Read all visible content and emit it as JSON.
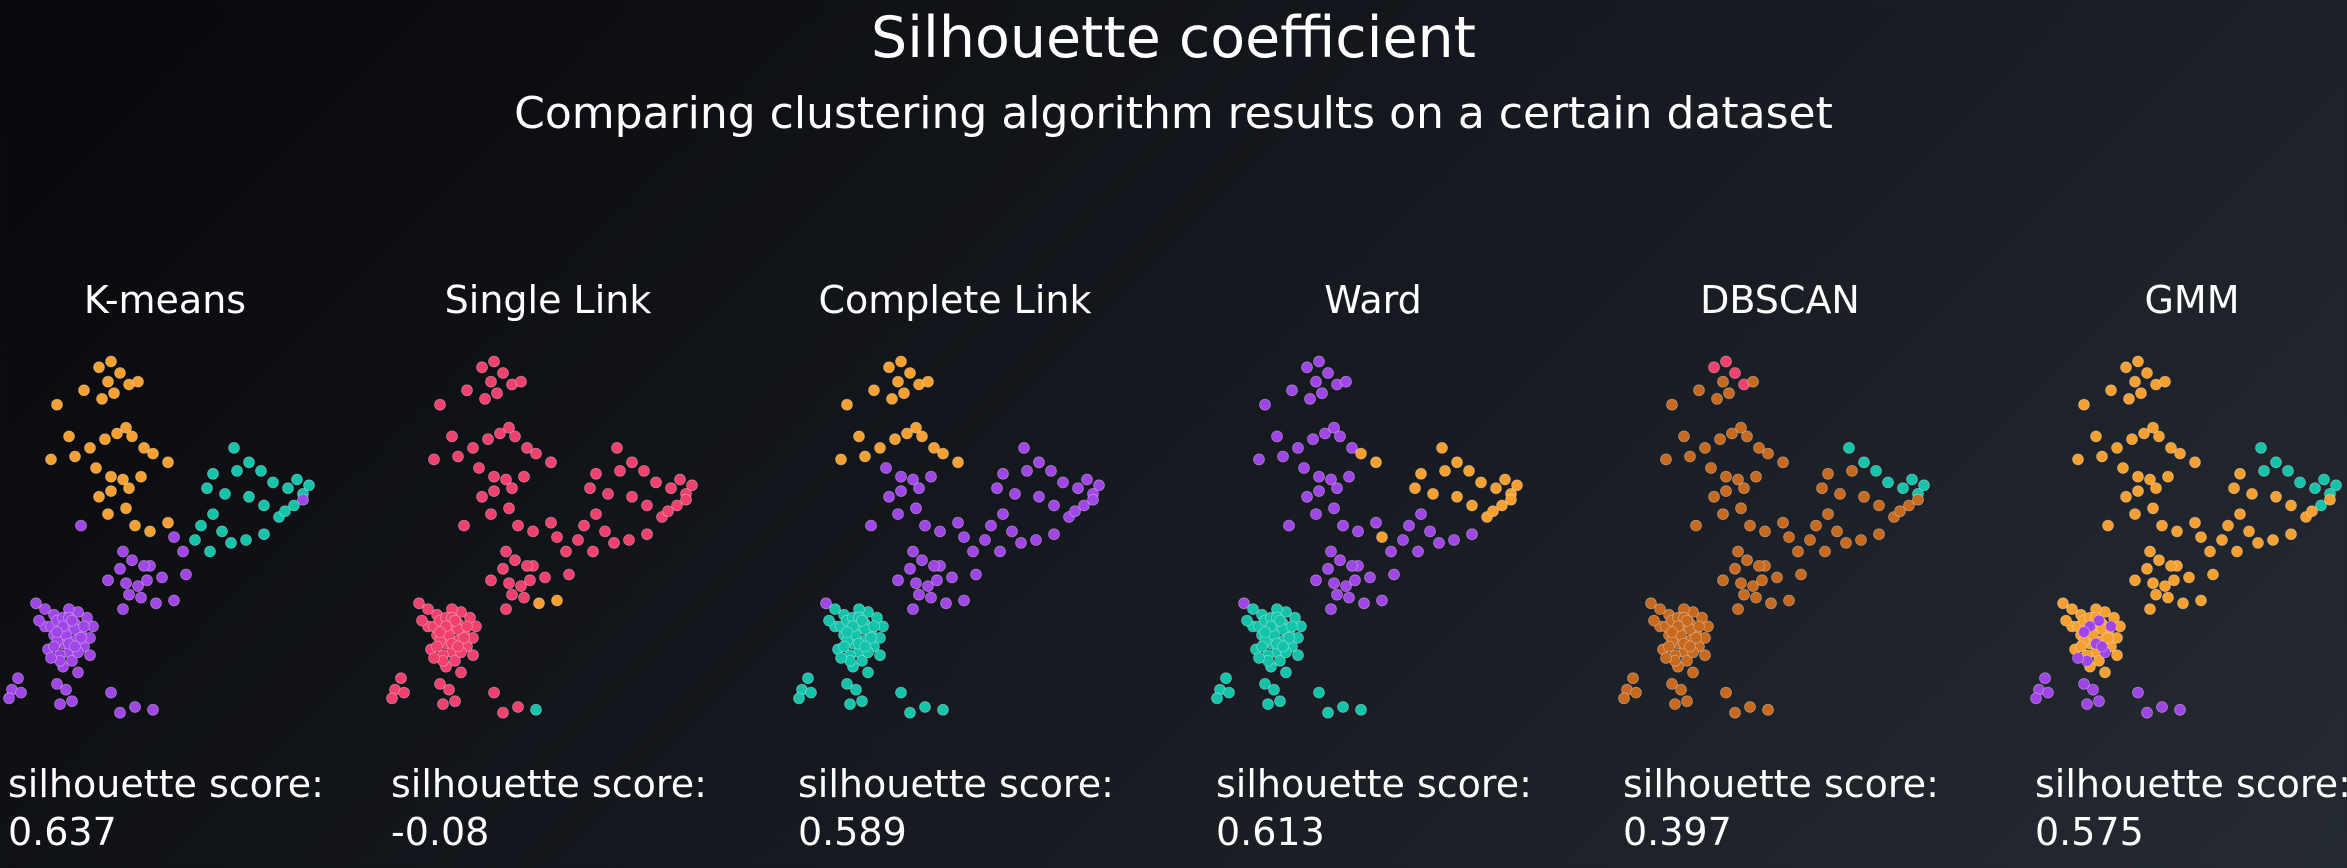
{
  "title": "Silhouette coefficient",
  "subtitle": "Comparing clustering algorithm results on a certain dataset",
  "colors": {
    "purple": "#a046e6",
    "orange": "#f5a030",
    "teal": "#14c4aa",
    "pink": "#f0406e",
    "brown": "#c76a20"
  },
  "chart_data": {
    "type": "scatter",
    "points": [
      [
        -2.2,
        4.0
      ],
      [
        -2.6,
        5.1
      ],
      [
        -1.7,
        5.6
      ],
      [
        -1.1,
        5.3
      ],
      [
        -0.7,
        5.5
      ],
      [
        -0.9,
        5.9
      ],
      [
        -1.2,
        6.4
      ],
      [
        -0.8,
        6.6
      ],
      [
        -0.5,
        6.2
      ],
      [
        -0.2,
        5.8
      ],
      [
        0.1,
        5.9
      ],
      [
        -2.8,
        3.2
      ],
      [
        -2.0,
        3.3
      ],
      [
        -1.5,
        3.6
      ],
      [
        -1.0,
        3.9
      ],
      [
        -0.6,
        4.1
      ],
      [
        -0.3,
        4.3
      ],
      [
        -0.1,
        4.0
      ],
      [
        0.3,
        3.6
      ],
      [
        0.6,
        3.4
      ],
      [
        1.1,
        3.1
      ],
      [
        -1.3,
        2.9
      ],
      [
        -0.8,
        2.6
      ],
      [
        -0.4,
        2.5
      ],
      [
        0.2,
        2.6
      ],
      [
        -1.2,
        1.9
      ],
      [
        -0.8,
        2.1
      ],
      [
        -0.2,
        2.2
      ],
      [
        -0.9,
        1.3
      ],
      [
        -0.3,
        1.5
      ],
      [
        0.0,
        0.9
      ],
      [
        0.5,
        0.7
      ],
      [
        1.1,
        1.0
      ],
      [
        -1.8,
        0.9
      ],
      [
        -0.4,
        0.0
      ],
      [
        0.5,
        -0.5
      ],
      [
        -0.9,
        -1.0
      ],
      [
        2.6,
        1.3
      ],
      [
        2.2,
        0.9
      ],
      [
        2.0,
        0.4
      ],
      [
        2.9,
        0.7
      ],
      [
        2.5,
        0.0
      ],
      [
        3.2,
        0.3
      ],
      [
        3.7,
        0.4
      ],
      [
        4.3,
        0.6
      ],
      [
        4.8,
        1.2
      ],
      [
        5.3,
        1.6
      ],
      [
        5.6,
        2.0
      ],
      [
        5.1,
        2.2
      ],
      [
        5.4,
        2.5
      ],
      [
        5.8,
        2.3
      ],
      [
        4.6,
        2.4
      ],
      [
        4.2,
        2.8
      ],
      [
        3.8,
        3.1
      ],
      [
        3.3,
        3.6
      ],
      [
        3.4,
        2.8
      ],
      [
        3.0,
        2.0
      ],
      [
        2.6,
        2.7
      ],
      [
        2.4,
        2.2
      ],
      [
        3.8,
        1.9
      ],
      [
        4.3,
        1.6
      ],
      [
        5.0,
        1.4
      ],
      [
        5.6,
        1.8
      ],
      [
        1.3,
        0.5
      ],
      [
        1.6,
        0.0
      ],
      [
        1.7,
        -0.8
      ],
      [
        1.3,
        -1.7
      ],
      [
        0.9,
        -0.9
      ],
      [
        0.7,
        -1.8
      ],
      [
        0.2,
        -1.6
      ],
      [
        -0.4,
        -2.0
      ],
      [
        -0.5,
        -0.6
      ],
      [
        -0.1,
        -0.3
      ],
      [
        -0.3,
        -1.1
      ],
      [
        0.1,
        -1.2
      ],
      [
        0.4,
        -1.0
      ],
      [
        0.3,
        -0.5
      ],
      [
        -0.2,
        -1.5
      ],
      [
        -3.3,
        -1.8
      ],
      [
        -3.0,
        -2.6
      ],
      [
        -2.7,
        -2.9
      ],
      [
        -2.4,
        -3.2
      ],
      [
        -2.2,
        -3.5
      ],
      [
        -2.5,
        -3.6
      ],
      [
        -2.9,
        -3.4
      ],
      [
        -2.6,
        -3.1
      ],
      [
        -2.3,
        -2.7
      ],
      [
        -2.0,
        -2.5
      ],
      [
        -1.8,
        -2.8
      ],
      [
        -2.0,
        -3.1
      ],
      [
        -1.7,
        -3.3
      ],
      [
        -2.1,
        -3.8
      ],
      [
        -2.4,
        -4.0
      ],
      [
        -1.9,
        -4.2
      ],
      [
        -1.5,
        -3.6
      ],
      [
        -1.5,
        -3.0
      ],
      [
        -1.4,
        -2.6
      ],
      [
        -1.6,
        -2.3
      ],
      [
        -1.9,
        -2.1
      ],
      [
        -2.2,
        -2.0
      ],
      [
        -2.7,
        -2.2
      ],
      [
        -3.0,
        -2.0
      ],
      [
        -3.2,
        -2.4
      ],
      [
        -2.8,
        -2.6
      ],
      [
        -2.6,
        -2.4
      ],
      [
        -2.4,
        -2.3
      ],
      [
        -2.2,
        -2.3
      ],
      [
        -2.0,
        -2.7
      ],
      [
        -1.8,
        -3.0
      ],
      [
        -2.3,
        -2.9
      ],
      [
        -2.7,
        -3.3
      ],
      [
        -2.2,
        -3.2
      ],
      [
        -1.9,
        -3.5
      ],
      [
        -2.5,
        -3.8
      ],
      [
        -2.8,
        -3.7
      ],
      [
        -2.1,
        -2.4
      ],
      [
        -1.7,
        -2.6
      ],
      [
        -2.4,
        -2.6
      ],
      [
        -2.0,
        -3.3
      ],
      [
        -2.6,
        -2.8
      ],
      [
        -3.9,
        -4.4
      ],
      [
        -4.1,
        -4.8
      ],
      [
        -3.8,
        -4.9
      ],
      [
        -4.2,
        -5.1
      ],
      [
        -2.6,
        -4.6
      ],
      [
        -2.3,
        -4.8
      ],
      [
        -2.1,
        -5.2
      ],
      [
        -2.5,
        -5.3
      ],
      [
        -0.8,
        -4.9
      ],
      [
        -0.5,
        -5.6
      ],
      [
        0.0,
        -5.4
      ],
      [
        0.6,
        -5.5
      ]
    ],
    "panels": [
      {
        "name": "K-means",
        "score_label": "silhouette score:",
        "score": "0.637",
        "colors": "ooooooooooooooooooooooooooooooooopppptttttttttttttttttttttttttppppppppppppppppppppppppppppppppppppppppppppppppppppppppppppppppppppppppppp"
      },
      {
        "name": "Single Link",
        "score_label": "silhouette score:",
        "score": "-0.08",
        "colors": "kkkkkkkkkkkkkkkkkkkkkkkkkkkkkkkkkkkkkkkkkkkkkkkkkkkkkkkkkkkkkkkkkkokokkkkkkkkkkkkkkkkkkkkkkkkkkkkkkkkkkkkkkkkkkkkkkkkkkkkkkkkkkkkkkttt"
      },
      {
        "name": "Complete Link",
        "score_label": "silhouette score:",
        "score": "0.589",
        "colors": "oooooooooooooooooooooppppppppppppppppppppppppppppppppppppppppppppppppppppppppppttttttttttttttttttttttttttttttttttttttttttttttttttttttttttttttt"
      },
      {
        "name": "Ward",
        "score_label": "silhouette score:",
        "score": "0.613",
        "colors": "pppppppppppppppppppooppppppppppppppppppppppppoooooooooooooooooooppppppppppppppptttttttttttttttttttttttttttttttttttttttttttttttttttttttttttttt"
      },
      {
        "name": "DBSCAN",
        "score_label": "silhouette score:",
        "score": "0.397",
        "colors": "bbbbbbkkkkbbbbbbbbbbbbbbbbbbbbbbbbbbbbbbbbbbbbbttttttttbbbbbbbbbbbbbbbbbbbbbbbbbbbbbbbbbbbbbbbbbbbbbbbbbbbbbbbbbbbbbbbbbbbbbbbbbbbbbbbbbb"
      },
      {
        "name": "GMM",
        "score_label": "silhouette score:",
        "score": "0.575",
        "colors": "oooooooooooooooooooooooooooooooooooooooooooooottttttttttoooooooooooooooooooooooooooooooooooooooooooooooooooooooppppppppppppppppppppp"
      }
    ]
  }
}
